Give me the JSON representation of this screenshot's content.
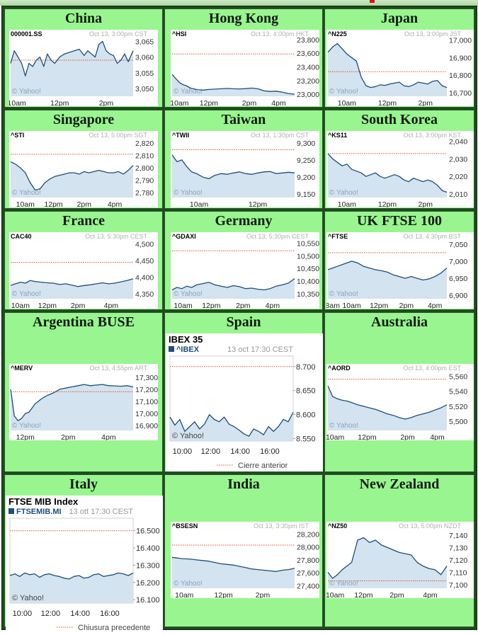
{
  "colors": {
    "cell_background": "#99f58f",
    "chart_fill": "#d3e3ef",
    "chart_line": "#1f4e79",
    "reference_line": "#e0522a",
    "timestamp_text": "#b0b0b0",
    "ticker_text": "#000000"
  },
  "cells": [
    {
      "title": "China"
    },
    {
      "title": "Hong Kong"
    },
    {
      "title": "Japan"
    },
    {
      "title": "Singapore"
    },
    {
      "title": "Taiwan"
    },
    {
      "title": "South Korea"
    },
    {
      "title": "France"
    },
    {
      "title": "Germany"
    },
    {
      "title": "UK FTSE 100"
    },
    {
      "title": "Argentina BUSE"
    },
    {
      "title": "Spain"
    },
    {
      "title": "Australia"
    },
    {
      "title": "Italy"
    },
    {
      "title": "India"
    },
    {
      "title": "New Zealand"
    }
  ],
  "chart_data": [
    {
      "type": "area",
      "ticker": "000001.SS",
      "timestamp": "Oct 13, 3:00pm CST",
      "watermark": "© Yahoo!",
      "xticks": [
        "10am",
        "12pm",
        "2pm"
      ],
      "ylim": [
        3047.5,
        3066
      ],
      "yticks": [
        3050,
        3055,
        3060,
        3065
      ],
      "yticklabels": [
        "3,050",
        "3,055",
        "3,060",
        "3,065"
      ],
      "reference": 3059,
      "x": [
        0,
        0.03,
        0.06,
        0.09,
        0.12,
        0.15,
        0.18,
        0.21,
        0.24,
        0.27,
        0.3,
        0.33,
        0.36,
        0.4,
        0.44,
        0.48,
        0.52,
        0.56,
        0.6,
        0.63,
        0.66,
        0.69,
        0.72,
        0.75,
        0.78,
        0.81,
        0.84,
        0.87,
        0.9,
        0.93,
        0.96,
        1.0
      ],
      "y": [
        3058,
        3062,
        3060,
        3058,
        3054,
        3058,
        3057,
        3059,
        3060,
        3057,
        3061,
        3059,
        3058,
        3060,
        3061,
        3061.5,
        3062,
        3062.5,
        3060.5,
        3062,
        3061,
        3060,
        3064,
        3065,
        3062,
        3061,
        3060.5,
        3058,
        3059,
        3061,
        3058.5,
        3062
      ]
    },
    {
      "type": "area",
      "ticker": "^HSI",
      "timestamp": "Oct 13, 4:00pm HKT",
      "watermark": "© Yahoo!",
      "xticks": [
        "10am",
        "12pm",
        "2pm",
        "4pm"
      ],
      "ylim": [
        22970,
        23820
      ],
      "yticks": [
        23000,
        23200,
        23400,
        23600,
        23800
      ],
      "yticklabels": [
        "23,000",
        "23,200",
        "23,400",
        "23,600",
        "23,800"
      ],
      "reference": 23590,
      "x": [
        0,
        0.03,
        0.06,
        0.09,
        0.12,
        0.15,
        0.2,
        0.25,
        0.3,
        0.35,
        0.4,
        0.45,
        0.5,
        0.55,
        0.6,
        0.65,
        0.7,
        0.75,
        0.8,
        0.85,
        0.9,
        0.95,
        1.0
      ],
      "y": [
        23290,
        23230,
        23170,
        23140,
        23120,
        23090,
        23070,
        23060,
        23070,
        23075,
        23080,
        23085,
        23080,
        23078,
        23082,
        23090,
        23080,
        23050,
        23040,
        23045,
        23030,
        23010,
        23000
      ]
    },
    {
      "type": "area",
      "ticker": "^N225",
      "timestamp": "Oct 13, 3:00pm JST",
      "watermark": "© Yahoo!",
      "xticks": [
        "10am",
        "12pm",
        "2pm"
      ],
      "ylim": [
        16680,
        17010
      ],
      "yticks": [
        16700,
        16800,
        16900,
        17000
      ],
      "yticklabels": [
        "16,700",
        "16,800",
        "16,900",
        "17,000"
      ],
      "reference": 16820,
      "x": [
        0,
        0.04,
        0.08,
        0.12,
        0.16,
        0.2,
        0.24,
        0.28,
        0.32,
        0.36,
        0.4,
        0.44,
        0.48,
        0.52,
        0.56,
        0.6,
        0.64,
        0.68,
        0.72,
        0.76,
        0.8,
        0.84,
        0.88,
        0.92,
        0.96,
        1.0
      ],
      "y": [
        16930,
        16960,
        16980,
        16950,
        16920,
        16900,
        16880,
        16790,
        16740,
        16730,
        16735,
        16745,
        16742,
        16750,
        16755,
        16760,
        16740,
        16735,
        16745,
        16760,
        16755,
        16750,
        16765,
        16770,
        16740,
        16730
      ]
    },
    {
      "type": "area",
      "ticker": "^STI",
      "timestamp": "Oct 13, 5:00pm SGT",
      "watermark": "© Yahoo!",
      "xticks": [
        "10am",
        "12pm",
        "2pm",
        "4pm"
      ],
      "ylim": [
        2776,
        2823
      ],
      "yticks": [
        2780,
        2790,
        2800,
        2810,
        2820
      ],
      "yticklabels": [
        "2,780",
        "2,790",
        "2,800",
        "2,810",
        "2,820"
      ],
      "reference": 2811,
      "x": [
        0,
        0.04,
        0.08,
        0.12,
        0.16,
        0.2,
        0.24,
        0.28,
        0.32,
        0.36,
        0.4,
        0.44,
        0.48,
        0.52,
        0.56,
        0.6,
        0.64,
        0.68,
        0.72,
        0.76,
        0.8,
        0.84,
        0.88,
        0.92,
        0.96,
        1.0
      ],
      "y": [
        2805,
        2803,
        2800,
        2796,
        2788,
        2782,
        2783,
        2788,
        2791,
        2793,
        2794,
        2795,
        2796,
        2796,
        2795,
        2797,
        2796,
        2797,
        2798,
        2797,
        2796,
        2796,
        2797,
        2795,
        2798,
        2802
      ]
    },
    {
      "type": "area",
      "ticker": "^TWII",
      "timestamp": "Oct 13, 1:30pm CST",
      "watermark": "© Yahoo!",
      "xticks": [
        "10am",
        "12pm"
      ],
      "ylim": [
        9140,
        9310
      ],
      "yticks": [
        9150,
        9200,
        9250,
        9300
      ],
      "yticklabels": [
        "9,150",
        "9,200",
        "9,250",
        "9,300"
      ],
      "reference": 9280,
      "x": [
        0,
        0.04,
        0.08,
        0.12,
        0.16,
        0.2,
        0.25,
        0.3,
        0.35,
        0.4,
        0.45,
        0.5,
        0.55,
        0.6,
        0.65,
        0.7,
        0.75,
        0.8,
        0.85,
        0.9,
        0.95,
        1.0
      ],
      "y": [
        9265,
        9245,
        9250,
        9230,
        9215,
        9210,
        9200,
        9195,
        9205,
        9210,
        9208,
        9212,
        9215,
        9210,
        9208,
        9212,
        9215,
        9216,
        9210,
        9212,
        9214,
        9212
      ]
    },
    {
      "type": "area",
      "ticker": "^KS11",
      "timestamp": "Oct 13, 3:00pm KST",
      "watermark": "© Yahoo!",
      "xticks": [
        "10am",
        "12pm",
        "2pm"
      ],
      "ylim": [
        2008,
        2041
      ],
      "yticks": [
        2010,
        2020,
        2030,
        2040
      ],
      "yticklabels": [
        "2,010",
        "2,020",
        "2,030",
        "2,040"
      ],
      "reference": 2033,
      "x": [
        0,
        0.04,
        0.08,
        0.12,
        0.16,
        0.2,
        0.24,
        0.28,
        0.32,
        0.36,
        0.4,
        0.44,
        0.48,
        0.52,
        0.56,
        0.6,
        0.64,
        0.68,
        0.72,
        0.76,
        0.8,
        0.84,
        0.88,
        0.92,
        0.96,
        1.0
      ],
      "y": [
        2033,
        2030,
        2028,
        2026,
        2027,
        2024,
        2023,
        2022,
        2020,
        2021,
        2022,
        2020,
        2019,
        2020,
        2021,
        2020,
        2018,
        2017,
        2019,
        2018,
        2017,
        2018,
        2017,
        2015,
        2012,
        2011
      ]
    },
    {
      "type": "area",
      "ticker": "CAC40",
      "timestamp": "Oct 13, 5:30pm CEST",
      "watermark": "© Yahoo!",
      "xticks": [
        "10am",
        "12pm",
        "2pm",
        "4pm"
      ],
      "ylim": [
        4335,
        4510
      ],
      "yticks": [
        4350,
        4400,
        4450,
        4500
      ],
      "yticklabels": [
        "4,350",
        "4,400",
        "4,450",
        "4,500"
      ],
      "reference": 4445,
      "x": [
        0,
        0.04,
        0.08,
        0.12,
        0.16,
        0.2,
        0.25,
        0.3,
        0.35,
        0.4,
        0.45,
        0.5,
        0.55,
        0.6,
        0.65,
        0.7,
        0.75,
        0.8,
        0.85,
        0.9,
        0.95,
        1.0
      ],
      "y": [
        4375,
        4380,
        4385,
        4382,
        4390,
        4387,
        4385,
        4383,
        4382,
        4378,
        4380,
        4376,
        4372,
        4375,
        4377,
        4380,
        4383,
        4380,
        4382,
        4386,
        4390,
        4395
      ]
    },
    {
      "type": "area",
      "ticker": "^GDAXI",
      "timestamp": "Oct 13, 5:30pm CEST",
      "watermark": "© Yahoo!",
      "xticks": [
        "10am",
        "12pm",
        "2pm",
        "4pm"
      ],
      "ylim": [
        10330,
        10560
      ],
      "yticks": [
        10350,
        10400,
        10450,
        10500,
        10550
      ],
      "yticklabels": [
        "10,350",
        "10,400",
        "10,450",
        "10,500",
        "10,550"
      ],
      "reference": 10520,
      "x": [
        0,
        0.04,
        0.08,
        0.12,
        0.16,
        0.2,
        0.25,
        0.3,
        0.35,
        0.4,
        0.45,
        0.5,
        0.55,
        0.6,
        0.65,
        0.7,
        0.75,
        0.8,
        0.85,
        0.9,
        0.95,
        1.0
      ],
      "y": [
        10365,
        10375,
        10370,
        10380,
        10375,
        10385,
        10390,
        10395,
        10385,
        10380,
        10375,
        10382,
        10378,
        10370,
        10372,
        10368,
        10365,
        10370,
        10380,
        10385,
        10392,
        10410
      ]
    },
    {
      "type": "area",
      "ticker": "^FTSE",
      "timestamp": "Oct 13, 4:30pm BST",
      "watermark": "© Yahoo!",
      "xticks": [
        "8am",
        "10am",
        "12pm",
        "2pm",
        "4pm"
      ],
      "ylim": [
        6890,
        7060
      ],
      "yticks": [
        6900,
        6950,
        7000,
        7050
      ],
      "yticklabels": [
        "6,900",
        "6,950",
        "7,000",
        "7,050"
      ],
      "reference": 7025,
      "x": [
        0,
        0.04,
        0.08,
        0.12,
        0.16,
        0.2,
        0.25,
        0.3,
        0.35,
        0.4,
        0.45,
        0.5,
        0.55,
        0.6,
        0.65,
        0.7,
        0.75,
        0.8,
        0.85,
        0.9,
        0.95,
        1.0
      ],
      "y": [
        6975,
        6980,
        6985,
        6990,
        6995,
        7000,
        6995,
        6985,
        6980,
        6975,
        6972,
        6968,
        6960,
        6955,
        6950,
        6955,
        6950,
        6945,
        6948,
        6955,
        6965,
        6980
      ]
    },
    {
      "type": "area",
      "ticker": "^MERV",
      "timestamp": "Oct 13, 4:55pm ART",
      "watermark": "© Yahoo!",
      "xticks": [
        "12pm",
        "2pm",
        "4pm"
      ],
      "ylim": [
        16860,
        17340
      ],
      "yticks": [
        16900,
        17000,
        17100,
        17200,
        17300
      ],
      "yticklabels": [
        "16,900",
        "17,000",
        "17,100",
        "17,200",
        "17,300"
      ],
      "reference": 17180,
      "x": [
        0,
        0.03,
        0.06,
        0.09,
        0.12,
        0.15,
        0.2,
        0.25,
        0.3,
        0.35,
        0.4,
        0.45,
        0.5,
        0.55,
        0.6,
        0.65,
        0.7,
        0.75,
        0.8,
        0.85,
        0.9,
        0.95,
        1.0
      ],
      "y": [
        17200,
        16980,
        16940,
        16960,
        17000,
        17010,
        17080,
        17120,
        17150,
        17170,
        17200,
        17210,
        17220,
        17230,
        17240,
        17230,
        17235,
        17240,
        17230,
        17228,
        17225,
        17230,
        17220
      ]
    },
    {
      "type": "area",
      "title": "IBEX 35",
      "ticker": "^IBEX",
      "timestamp": "13 oct 17:30 CEST",
      "watermark": "© Yahoo!",
      "legend": "Cierre anterior",
      "xticks": [
        "10:00",
        "12:00",
        "14:00",
        "16:00"
      ],
      "ylim": [
        8545,
        8710
      ],
      "yticks": [
        8550,
        8600,
        8650,
        8700
      ],
      "yticklabels": [
        "8.550",
        "8.600",
        "8.650",
        "8.700"
      ],
      "reference": 8700,
      "x": [
        0,
        0.04,
        0.08,
        0.12,
        0.16,
        0.2,
        0.24,
        0.28,
        0.32,
        0.36,
        0.4,
        0.44,
        0.48,
        0.52,
        0.56,
        0.6,
        0.64,
        0.68,
        0.72,
        0.76,
        0.8,
        0.84,
        0.88,
        0.92,
        0.96,
        1.0
      ],
      "y": [
        8595,
        8578,
        8590,
        8565,
        8575,
        8585,
        8570,
        8580,
        8600,
        8590,
        8585,
        8595,
        8580,
        8575,
        8568,
        8560,
        8555,
        8570,
        8565,
        8558,
        8575,
        8565,
        8575,
        8590,
        8585,
        8605
      ]
    },
    {
      "type": "area",
      "ticker": "^AORD",
      "timestamp": "Oct 13, 4:00pm EST",
      "watermark": "© Yahoo!",
      "xticks": [
        "10am",
        "12pm",
        "2pm",
        "4pm"
      ],
      "ylim": [
        5488,
        5565
      ],
      "yticks": [
        5500,
        5520,
        5540,
        5560
      ],
      "yticklabels": [
        "5,500",
        "5,520",
        "5,540",
        "5,560"
      ],
      "reference": 5556,
      "x": [
        0,
        0.04,
        0.08,
        0.12,
        0.16,
        0.2,
        0.25,
        0.3,
        0.35,
        0.4,
        0.45,
        0.5,
        0.55,
        0.6,
        0.65,
        0.7,
        0.75,
        0.8,
        0.85,
        0.9,
        0.95,
        1.0
      ],
      "y": [
        5547,
        5533,
        5530,
        5528,
        5527,
        5525,
        5522,
        5520,
        5518,
        5516,
        5513,
        5510,
        5508,
        5505,
        5503,
        5505,
        5508,
        5510,
        5512,
        5515,
        5518,
        5522
      ]
    },
    {
      "type": "area",
      "title": "FTSE MIB Index",
      "ticker": "FTSEMIB.MI",
      "timestamp": "13 ott 17:30 CEST",
      "watermark": "© Yahoo!",
      "legend": "Chiusura precedente",
      "xticks": [
        "10:00",
        "12:00",
        "14:00",
        "16:00"
      ],
      "ylim": [
        16080,
        16540
      ],
      "yticks": [
        16100,
        16200,
        16300,
        16400,
        16500
      ],
      "yticklabels": [
        "16.100",
        "16.200",
        "16.300",
        "16.400",
        "16.500"
      ],
      "reference": 16500,
      "x": [
        0,
        0.04,
        0.08,
        0.12,
        0.16,
        0.2,
        0.24,
        0.28,
        0.32,
        0.36,
        0.4,
        0.44,
        0.48,
        0.52,
        0.56,
        0.6,
        0.64,
        0.68,
        0.72,
        0.76,
        0.8,
        0.84,
        0.88,
        0.92,
        0.96,
        1.0
      ],
      "y": [
        16240,
        16250,
        16235,
        16255,
        16245,
        16250,
        16230,
        16245,
        16250,
        16240,
        16235,
        16225,
        16220,
        16235,
        16240,
        16225,
        16230,
        16245,
        16250,
        16235,
        16240,
        16245,
        16255,
        16250,
        16240,
        16255
      ]
    },
    {
      "type": "area",
      "ticker": "^BSESN",
      "timestamp": "Oct 13, 3:30pm IST",
      "watermark": "© Yahoo!",
      "xticks": [
        "10am",
        "12pm",
        "2pm"
      ],
      "ylim": [
        27360,
        28260
      ],
      "yticks": [
        27400,
        27600,
        27800,
        28000,
        28200
      ],
      "yticklabels": [
        "27,400",
        "27,600",
        "27,800",
        "28,000",
        "28,200"
      ],
      "reference": 28030,
      "x": [
        0,
        0.04,
        0.08,
        0.12,
        0.16,
        0.2,
        0.25,
        0.3,
        0.35,
        0.4,
        0.45,
        0.5,
        0.55,
        0.6,
        0.65,
        0.7,
        0.75,
        0.8,
        0.85,
        0.9,
        0.95,
        1.0
      ],
      "y": [
        27840,
        27830,
        27820,
        27815,
        27810,
        27800,
        27790,
        27780,
        27760,
        27740,
        27730,
        27720,
        27700,
        27680,
        27660,
        27650,
        27640,
        27630,
        27620,
        27640,
        27650,
        27670
      ]
    },
    {
      "type": "area",
      "ticker": "^NZ50",
      "timestamp": "Oct 13, 5:00pm NZDT",
      "watermark": "© Yahoo!",
      "xticks": [
        "10am",
        "12pm",
        "2pm",
        "4pm"
      ],
      "ylim": [
        7097,
        7144
      ],
      "yticks": [
        7100,
        7110,
        7120,
        7130,
        7140
      ],
      "yticklabels": [
        "7,100",
        "7,110",
        "7,120",
        "7,130",
        "7,140"
      ],
      "reference": 7103,
      "x": [
        0,
        0.04,
        0.08,
        0.12,
        0.16,
        0.2,
        0.25,
        0.3,
        0.35,
        0.4,
        0.45,
        0.5,
        0.55,
        0.6,
        0.65,
        0.7,
        0.75,
        0.8,
        0.85,
        0.9,
        0.95,
        1.0
      ],
      "y": [
        7110,
        7105,
        7108,
        7112,
        7115,
        7118,
        7136,
        7138,
        7134,
        7136,
        7132,
        7130,
        7128,
        7126,
        7125,
        7124,
        7118,
        7115,
        7113,
        7112,
        7108,
        7115
      ]
    }
  ]
}
